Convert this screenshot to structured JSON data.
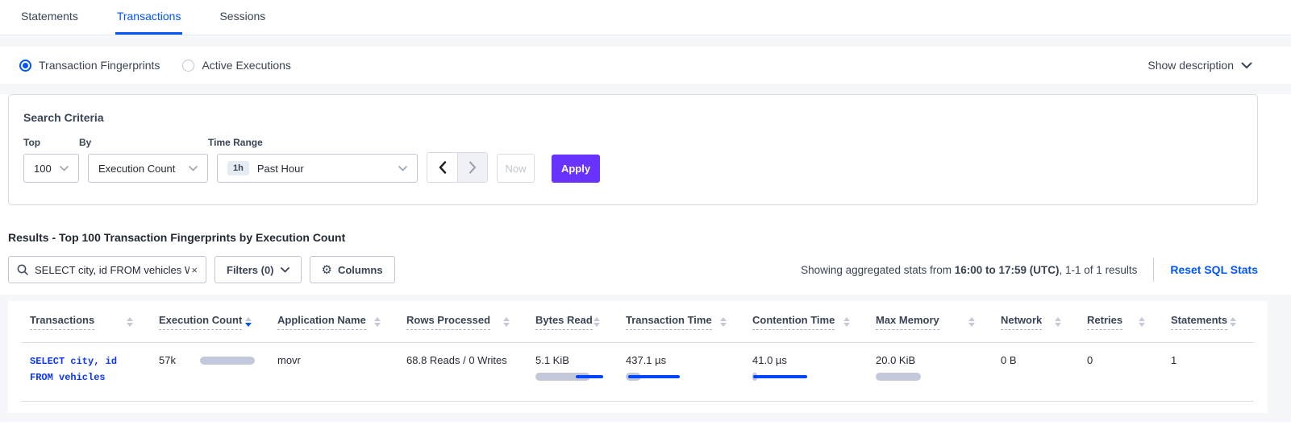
{
  "colors": {
    "accent_blue": "#0055ff",
    "apply_purple": "#6933ff",
    "bar_gray": "#c3c9da",
    "bar_blue": "#0046ff",
    "page_gray": "#f5f7fa"
  },
  "tabs": [
    {
      "label": "Statements"
    },
    {
      "label": "Transactions"
    },
    {
      "label": "Sessions"
    }
  ],
  "view_toggle": {
    "fingerprints_label": "Transaction Fingerprints",
    "active_executions_label": "Active Executions",
    "show_description_label": "Show description"
  },
  "search_criteria": {
    "title": "Search Criteria",
    "top": {
      "label": "Top",
      "value": "100"
    },
    "by": {
      "label": "By",
      "value": "Execution Count"
    },
    "time_range": {
      "label": "Time Range",
      "badge": "1h",
      "value": "Past Hour"
    },
    "now_label": "Now",
    "apply_label": "Apply"
  },
  "results": {
    "heading": "Results - Top 100 Transaction Fingerprints by Execution Count",
    "search_value": "SELECT city, id FROM vehicles WHE",
    "clear_glyph": "×",
    "filters_label": "Filters (0)",
    "columns_label": "Columns",
    "gear_glyph": "⚙",
    "stats_prefix": "Showing aggregated stats from ",
    "stats_bold": "16:00 to 17:59 (UTC)",
    "stats_suffix": ", 1-1 of 1 results",
    "reset_label": "Reset SQL Stats"
  },
  "table": {
    "columns": [
      {
        "label": "Transactions",
        "sort": "none"
      },
      {
        "label": "Execution Count",
        "sort": "desc"
      },
      {
        "label": "Application Name",
        "sort": "none"
      },
      {
        "label": "Rows Processed",
        "sort": "none"
      },
      {
        "label": "Bytes Read",
        "sort": "none"
      },
      {
        "label": "Transaction Time",
        "sort": "none"
      },
      {
        "label": "Contention Time",
        "sort": "none"
      },
      {
        "label": "Max Memory",
        "sort": "none"
      },
      {
        "label": "Network",
        "sort": "none"
      },
      {
        "label": "Retries",
        "sort": "none"
      },
      {
        "label": "Statements",
        "sort": "none"
      }
    ],
    "row": {
      "transactions_line1": "SELECT city, id",
      "transactions_line2": "FROM vehicles",
      "execution_count": "57k",
      "application_name": "movr",
      "rows_processed": "68.8 Reads / 0 Writes",
      "bytes_read": "5.1 KiB",
      "transaction_time": "437.1 µs",
      "contention_time": "41.0 µs",
      "max_memory": "20.0 KiB",
      "network": "0 B",
      "retries": "0",
      "statements": "1",
      "bars": {
        "execution_count": {
          "gray_w": 68
        },
        "bytes_read": {
          "gray_w": 68,
          "blue_l": 50,
          "blue_w": 34
        },
        "transaction_time": {
          "gray_w": 19,
          "blue_l": 3,
          "blue_w": 64
        },
        "contention_time": {
          "gray_w": 6,
          "blue_l": 1,
          "blue_w": 67
        },
        "max_memory": {
          "gray_w": 56
        }
      }
    }
  }
}
